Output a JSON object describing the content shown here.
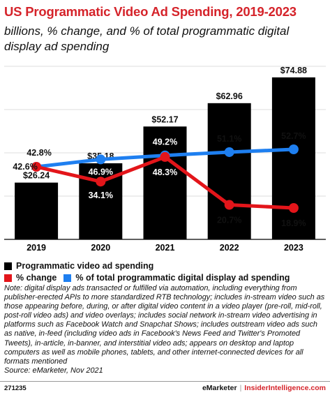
{
  "title": "US Programmatic Video Ad Spending, 2019-2023",
  "subtitle": "billions, % change, and % of total programmatic digital display ad spending",
  "chart_data": {
    "type": "bar",
    "categories": [
      "2019",
      "2020",
      "2021",
      "2022",
      "2023"
    ],
    "ylim": [
      0,
      80
    ],
    "series": [
      {
        "name": "Programmatic video ad spending",
        "type": "bar",
        "color": "#000000",
        "values": [
          26.24,
          35.18,
          52.17,
          62.96,
          74.88
        ],
        "labels": [
          "$26.24",
          "$35.18",
          "$52.17",
          "$62.96",
          "$74.88"
        ]
      },
      {
        "name": "% change",
        "type": "line",
        "color": "#e3151a",
        "values": [
          42.6,
          34.1,
          48.3,
          20.7,
          18.9
        ],
        "labels": [
          "42.6%",
          "34.1%",
          "48.3%",
          "20.7%",
          "18.9%"
        ]
      },
      {
        "name": "% of total programmatic digital display ad spending",
        "type": "line",
        "color": "#1e7ff0",
        "values": [
          42.8,
          46.9,
          49.2,
          51.1,
          52.7
        ],
        "labels": [
          "42.8%",
          "46.9%",
          "49.2%",
          "51.1%",
          "52.7%"
        ]
      }
    ]
  },
  "note": "Note: digital display ads transacted or fulfilled via automation, including everything from publisher-erected APIs to more standardized RTB technology; includes in-stream video such as those appearing before, during, or after digital video content in a video player (pre-roll, mid-roll, post-roll video ads) and video overlays; includes social network in-stream video advertising in platforms such as Facebook Watch and Snapchat Shows; includes outstream video ads such as native, in-feed (including video ads in Facebook's News Feed and Twitter's Promoted Tweets), in-article, in-banner, and interstitial video ads; appears on desktop and laptop computers as well as mobile phones, tablets, and other internet-connected devices for all formats mentioned",
  "source": "Source: eMarketer, Nov 2021",
  "footer": {
    "id": "271235",
    "brand": "eMarketer",
    "separator": "|",
    "site": "InsiderIntelligence.com"
  }
}
